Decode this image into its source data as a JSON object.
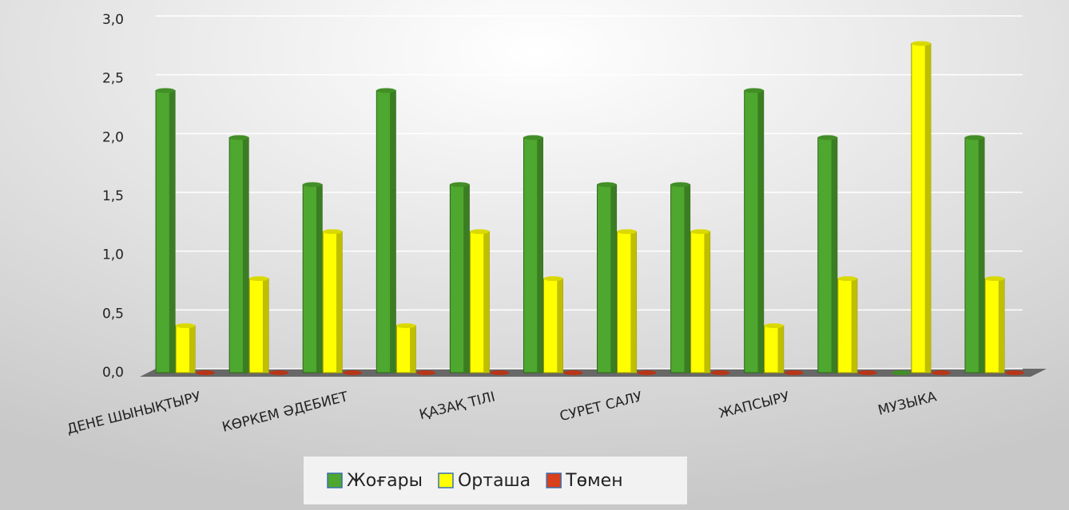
{
  "chart_data": {
    "type": "bar3d",
    "categories": [
      "ДЕНЕ ШЫНЫҚТЫРУ",
      null,
      "КӨРКЕМ ӘДЕБИЕТ",
      null,
      "ҚАЗАҚ ТІЛІ",
      null,
      "СУРЕТ САЛУ",
      null,
      "ЖАПСЫРУ",
      null,
      "МУЗЫКА",
      null
    ],
    "series": [
      {
        "name": "Жоғары",
        "color": "#4ea72e",
        "values": [
          2.4,
          2.0,
          1.6,
          2.4,
          1.6,
          2.0,
          1.6,
          1.6,
          2.4,
          2.0,
          0,
          2.0
        ]
      },
      {
        "name": "Орташа",
        "color": "#ffff00",
        "values": [
          0.4,
          0.8,
          1.2,
          0.4,
          1.2,
          0.8,
          1.2,
          1.2,
          0.4,
          0.8,
          2.8,
          0.8
        ]
      },
      {
        "name": "Төмен",
        "color": "#d9401c",
        "values": [
          0,
          0,
          0,
          0,
          0,
          0,
          0,
          0,
          0,
          0,
          0,
          0
        ]
      }
    ],
    "ylim": [
      0,
      3
    ],
    "yticks": [
      {
        "value": 0,
        "label": "0,0"
      },
      {
        "value": 0.5,
        "label": "0,5"
      },
      {
        "value": 1,
        "label": "1,0"
      },
      {
        "value": 1.5,
        "label": "1,5"
      },
      {
        "value": 2,
        "label": "2,0"
      },
      {
        "value": 2.5,
        "label": "2,5"
      },
      {
        "value": 3,
        "label": "3,0"
      }
    ],
    "grid": true,
    "legend": "bottom"
  }
}
